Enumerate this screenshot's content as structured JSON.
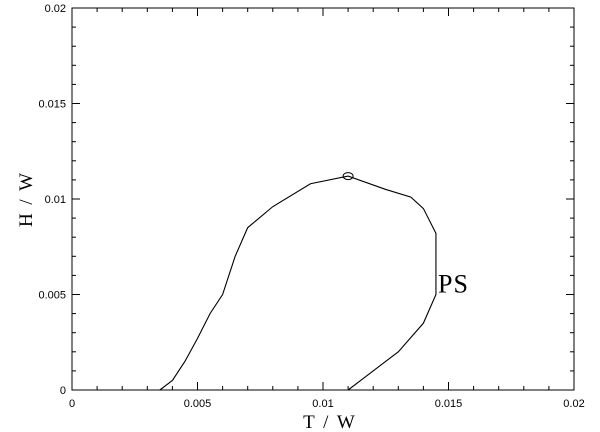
{
  "chart_data": {
    "type": "line",
    "title": "",
    "xlabel": "T  / W",
    "ylabel": "H / W",
    "xlim": [
      0,
      0.02
    ],
    "ylim": [
      0,
      0.02
    ],
    "x_ticks": [
      0,
      0.005,
      0.01,
      0.015,
      0.02
    ],
    "x_tick_labels": [
      "0",
      "0.005",
      "0.01",
      "0.015",
      "0.02"
    ],
    "y_ticks": [
      0,
      0.005,
      0.01,
      0.015,
      0.02
    ],
    "y_tick_labels": [
      "0",
      "0.005",
      "0.01",
      "0.015",
      "0.02"
    ],
    "grid": false,
    "series": [
      {
        "points": [
          [
            0.0035,
            0.0
          ],
          [
            0.004,
            0.0005
          ],
          [
            0.0045,
            0.0015
          ],
          [
            0.005,
            0.0027
          ],
          [
            0.0055,
            0.004
          ],
          [
            0.006,
            0.005
          ],
          [
            0.0065,
            0.007
          ],
          [
            0.007,
            0.0085
          ],
          [
            0.008,
            0.0096
          ],
          [
            0.0095,
            0.0108
          ],
          [
            0.011,
            0.0112
          ],
          [
            0.0125,
            0.0105
          ],
          [
            0.0135,
            0.0101
          ],
          [
            0.014,
            0.0095
          ],
          [
            0.0145,
            0.0082
          ],
          [
            0.0145,
            0.005
          ],
          [
            0.014,
            0.0035
          ],
          [
            0.013,
            0.002
          ],
          [
            0.011,
            0.0
          ]
        ]
      }
    ],
    "marker": {
      "x": 0.011,
      "y": 0.0112,
      "shape": "open-ellipse"
    },
    "annotations": [
      {
        "text": "PS",
        "x": 0.0152,
        "y": 0.0051
      }
    ]
  }
}
